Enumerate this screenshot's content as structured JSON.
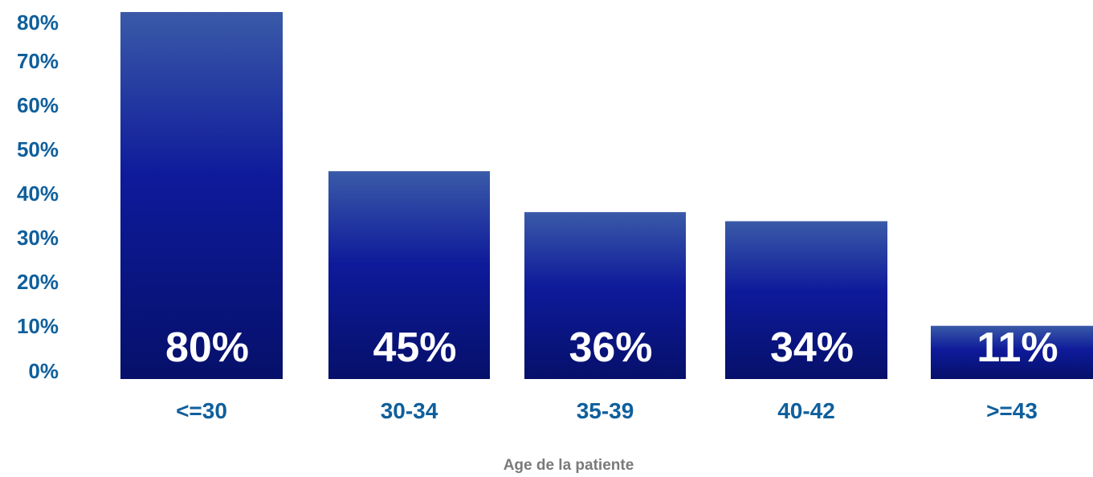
{
  "chart_data": {
    "type": "bar",
    "categories": [
      "<=30",
      "30-34",
      "35-39",
      "40-42",
      ">=43"
    ],
    "values": [
      80,
      45,
      36,
      34,
      11
    ],
    "data_labels": [
      "80%",
      "45%",
      "36%",
      "34%",
      "11%"
    ],
    "yticks": [
      "0%",
      "10%",
      "20%",
      "30%",
      "40%",
      "50%",
      "60%",
      "70%",
      "80%"
    ],
    "ylim": [
      0,
      80
    ],
    "xlabel": "Age de la patiente",
    "ylabel": "",
    "grid": false,
    "colors": {
      "bar_top": "#3a5aa8",
      "bar_mid": "#0e1a9a",
      "bar_bottom": "#06106a",
      "tick_label": "#0f5f9c",
      "axis_title": "#7a7a7a",
      "data_label": "#ffffff"
    }
  }
}
